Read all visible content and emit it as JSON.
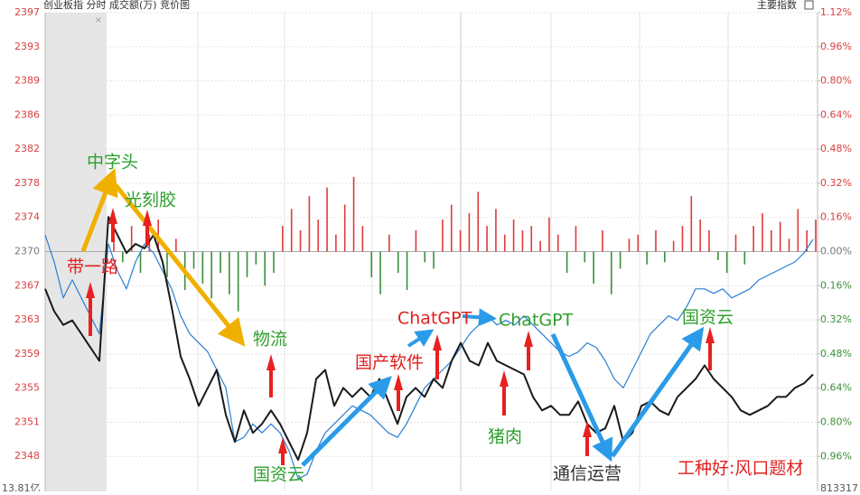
{
  "chart_data": {
    "type": "line",
    "header_left": "创业板指  分时  成交额(万)  竞价图",
    "header_right": "主要指数",
    "footer_left": "13.81亿",
    "footer_right": "813317",
    "ylim": [
      2344.2,
      2397.0
    ],
    "yticks": [
      {
        "value": 2397.0,
        "label": "2397"
      },
      {
        "value": 2393.21,
        "label": "2393"
      },
      {
        "value": 2389.42,
        "label": "2389"
      },
      {
        "value": 2385.62,
        "label": "2386"
      },
      {
        "value": 2381.83,
        "label": "2382"
      },
      {
        "value": 2378.04,
        "label": "2378"
      },
      {
        "value": 2374.24,
        "label": "2374"
      },
      {
        "value": 2370.45,
        "label": "2370"
      },
      {
        "value": 2366.66,
        "label": "2367"
      },
      {
        "value": 2362.86,
        "label": "2363"
      },
      {
        "value": 2359.07,
        "label": "2359"
      },
      {
        "value": 2355.28,
        "label": "2355"
      },
      {
        "value": 2351.48,
        "label": "2351"
      },
      {
        "value": 2347.69,
        "label": "2348"
      }
    ],
    "y2lim": [
      -1.107,
      1.12
    ],
    "y2ticks": [
      {
        "value": 1.12,
        "label": "1.12%"
      },
      {
        "value": 0.96,
        "label": "0.96%"
      },
      {
        "value": 0.8,
        "label": "0.80%"
      },
      {
        "value": 0.64,
        "label": "0.64%"
      },
      {
        "value": 0.48,
        "label": "0.48%"
      },
      {
        "value": 0.32,
        "label": "0.32%"
      },
      {
        "value": 0.16,
        "label": "0.16%"
      },
      {
        "value": 0,
        "label": "0.00%"
      },
      {
        "value": -0.16,
        "label": "0.16%"
      },
      {
        "value": -0.32,
        "label": "0.32%"
      },
      {
        "value": -0.48,
        "label": "0.48%"
      },
      {
        "value": -0.64,
        "label": "0.64%"
      },
      {
        "value": -0.8,
        "label": "0.80%"
      },
      {
        "value": -0.96,
        "label": "0.96%"
      }
    ],
    "grid": true,
    "series": [
      {
        "color": "#1a1a1a",
        "values": [
          2366.3,
          2363.8,
          2362.3,
          2362.8,
          2361.3,
          2359.8,
          2358.3,
          2374.3,
          2372.3,
          2370.3,
          2371.3,
          2370.8,
          2372.3,
          2369.3,
          2364.3,
          2358.8,
          2356.3,
          2353.3,
          2355.3,
          2357.3,
          2352.3,
          2349.3,
          2352.8,
          2350.3,
          2351.3,
          2352.8,
          2351.3,
          2349.3,
          2347.3,
          2350.3,
          2356.3,
          2357.3,
          2353.3,
          2355.3,
          2354.3,
          2355.3,
          2354.3,
          2356.3,
          2353.8,
          2351.3,
          2354.3,
          2355.3,
          2354.3,
          2356.3,
          2355.3,
          2358.3,
          2360.3,
          2358.3,
          2357.8,
          2360.3,
          2358.3,
          2357.8,
          2357.3,
          2356.8,
          2354.3,
          2352.8,
          2353.3,
          2352.3,
          2352.3,
          2353.8,
          2351.3,
          2350.3,
          2350.8,
          2353.3,
          2349.3,
          2350.3,
          2353.3,
          2353.8,
          2352.8,
          2352.3,
          2354.3,
          2355.3,
          2356.3,
          2357.8,
          2356.3,
          2355.3,
          2354.3,
          2352.8,
          2352.3,
          2352.8,
          2353.3,
          2354.3,
          2354.3,
          2355.3,
          2355.8,
          2356.8
        ]
      },
      {
        "color": "#2a7fd4",
        "values": [
          2372.3,
          2369.3,
          2365.3,
          2367.3,
          2365.3,
          2363.3,
          2361.3,
          2371.3,
          2368.3,
          2366.3,
          2369.3,
          2371.3,
          2370.3,
          2368.3,
          2366.3,
          2363.3,
          2361.3,
          2360.3,
          2359.3,
          2357.3,
          2355.3,
          2349.3,
          2349.8,
          2351.3,
          2350.3,
          2351.3,
          2350.3,
          2348.3,
          2345.2,
          2345.7,
          2348.3,
          2350.3,
          2351.3,
          2352.3,
          2353.3,
          2352.8,
          2352.3,
          2351.3,
          2350.3,
          2349.8,
          2351.3,
          2353.3,
          2355.3,
          2356.3,
          2357.3,
          2358.3,
          2359.8,
          2361.3,
          2362.3,
          2363.3,
          2362.3,
          2362.8,
          2362.3,
          2363.3,
          2362.3,
          2361.3,
          2360.3,
          2359.3,
          2358.8,
          2359.3,
          2360.3,
          2359.8,
          2358.3,
          2356.3,
          2355.3,
          2357.3,
          2359.3,
          2361.3,
          2362.3,
          2363.3,
          2362.8,
          2364.3,
          2366.3,
          2366.3,
          2365.8,
          2366.3,
          2365.3,
          2365.8,
          2366.3,
          2367.3,
          2367.8,
          2368.3,
          2368.8,
          2369.3,
          2370.3,
          2371.8
        ]
      }
    ],
    "volume": {
      "axis": "y2",
      "up_color": "#e03a3a",
      "down_color": "#3a8f3a",
      "values": [
        0.18,
        -0.05,
        0.12,
        -0.1,
        0.08,
        0.15,
        -0.12,
        0.06,
        -0.18,
        -0.08,
        -0.15,
        -0.22,
        -0.1,
        -0.2,
        -0.28,
        -0.12,
        -0.06,
        -0.16,
        -0.1,
        0.12,
        0.2,
        0.1,
        0.26,
        0.15,
        0.3,
        0.08,
        0.22,
        0.35,
        0.12,
        -0.12,
        -0.2,
        0.08,
        -0.1,
        -0.18,
        0.1,
        -0.05,
        -0.08,
        0.15,
        0.22,
        0.1,
        0.18,
        0.28,
        0.12,
        0.2,
        0.08,
        0.15,
        0.1,
        0.12,
        0.05,
        0.16,
        0.08,
        -0.1,
        0.12,
        -0.05,
        -0.15,
        0.1,
        -0.2,
        -0.08,
        0.06,
        0.08,
        -0.06,
        0.1,
        -0.05,
        0.05,
        0.12,
        0.26,
        0.15,
        0.1,
        -0.04,
        -0.1,
        0.08,
        -0.06,
        0.12,
        0.18,
        0.1,
        0.14,
        0.06,
        0.2,
        0.1,
        0.15
      ]
    },
    "annotations": [
      {
        "text": "中字头",
        "color": "#2ea02e"
      },
      {
        "text": "光刻胶",
        "color": "#2ea02e"
      },
      {
        "text": "带一路",
        "color": "#e02020"
      },
      {
        "text": "物流",
        "color": "#2ea02e"
      },
      {
        "text": "国资云",
        "color": "#2ea02e"
      },
      {
        "text": "国产软件",
        "color": "#e02020"
      },
      {
        "text": "ChatGPT",
        "color": "#e02020"
      },
      {
        "text": "ChatGPT",
        "color": "#2ea02e"
      },
      {
        "text": "猪肉",
        "color": "#2ea02e"
      },
      {
        "text": "通信运营",
        "color": "#333333"
      },
      {
        "text": "国资云",
        "color": "#2ea02e"
      },
      {
        "text": "工种好:风口题材",
        "color": "#e02020"
      }
    ]
  }
}
